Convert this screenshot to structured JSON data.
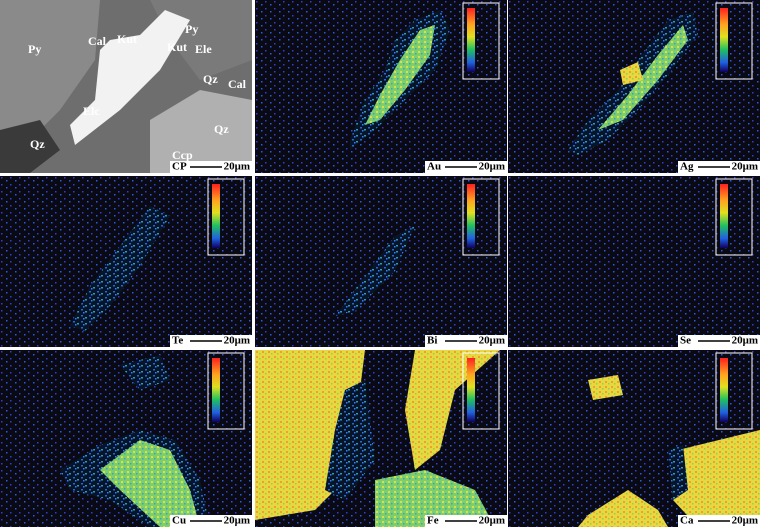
{
  "panels": [
    {
      "label": "CP",
      "scale": "20μm"
    },
    {
      "label": "Au",
      "scale": "20μm"
    },
    {
      "label": "Ag",
      "scale": "20μm"
    },
    {
      "label": "Te",
      "scale": "20μm"
    },
    {
      "label": "Bi",
      "scale": "20μm"
    },
    {
      "label": "Se",
      "scale": "20μm"
    },
    {
      "label": "Cu",
      "scale": "20μm"
    },
    {
      "label": "Fe",
      "scale": "20μm"
    },
    {
      "label": "Ca",
      "scale": "20μm"
    }
  ],
  "annotations": [
    "Py",
    "Py",
    "Cal",
    "Kut",
    "Kut",
    "Ele",
    "Elc",
    "Qz",
    "Cal",
    "Qz",
    "Qz",
    "Ccp"
  ]
}
